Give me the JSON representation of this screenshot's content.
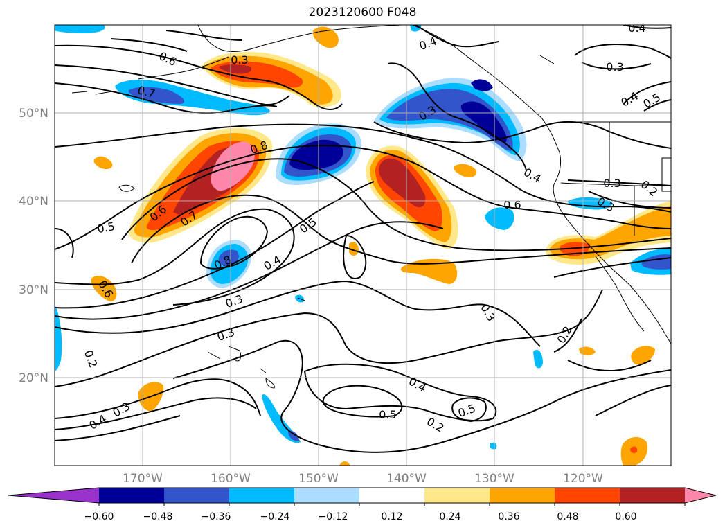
{
  "title": "2023120600 F048",
  "map": {
    "lon_ticks": [
      "170°W",
      "160°W",
      "150°W",
      "140°W",
      "130°W",
      "120°W"
    ],
    "lat_ticks": [
      "50°N",
      "40°N",
      "30°N",
      "20°N"
    ],
    "lon_range": [
      -180,
      -110
    ],
    "lat_range": [
      10,
      60
    ],
    "gridlines": true,
    "tick_label_color": "#808080",
    "contour_labels": [
      "0.6",
      "0.3",
      "0.7",
      "0.4",
      "0.3",
      "0.3",
      "0.4",
      "0.5",
      "0.8",
      "0.6",
      "0.5",
      "0.7",
      "0.8",
      "0.4",
      "0.5",
      "0.4",
      "0.6",
      "0.3",
      "0.3",
      "0.6",
      "0.3",
      "0.2",
      "0.3",
      "0.4",
      "0.5",
      "0.4",
      "0.5",
      "0.2",
      "0.3",
      "0.2",
      "0.4",
      "0.3",
      "0.2"
    ]
  },
  "colorbar": {
    "tick_labels": [
      "−0.60",
      "−0.48",
      "−0.36",
      "−0.24",
      "−0.12",
      "0.12",
      "0.24",
      "0.36",
      "0.48",
      "0.60"
    ],
    "colors": [
      "#9933cc",
      "#000099",
      "#3355cc",
      "#00bbff",
      "#aaddff",
      "#ffffff",
      "#ffe88a",
      "#ffa500",
      "#ff4500",
      "#b22222",
      "#ff88aa"
    ],
    "extend": "both"
  }
}
